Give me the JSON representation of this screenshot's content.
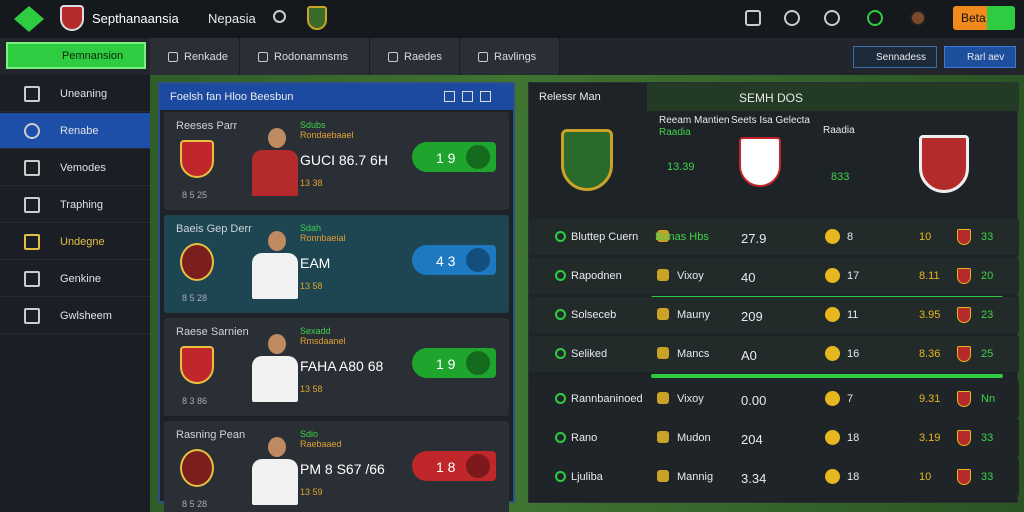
{
  "header": {
    "brand": "Septhanaansia",
    "nav": "Nepasia",
    "button": "Beta"
  },
  "toolbar": {
    "primary": "Pemnansion",
    "tabs": [
      "Renkade",
      "Rodonamnsms",
      "Raedes",
      "Ravlings"
    ],
    "actions": [
      "Sennadess",
      "Rarl aev"
    ]
  },
  "sidebar": {
    "items": [
      "Uneaning",
      "Renabe",
      "Vemodes",
      "Traphing",
      "Undegne",
      "Genkine",
      "Gwlsheem"
    ]
  },
  "matches": {
    "title": "Foelsh fan Hloo Beesbun",
    "cards": [
      {
        "title": "Reeses Parr",
        "tag": "Sdubs",
        "sub": "Rondaebaael",
        "score": "GUCI 86.7 6H",
        "odds": "1 9",
        "note": "13 38",
        "foot": "8 5 25"
      },
      {
        "title": "Baeis Gep Derr",
        "tag": "Sdah",
        "sub": "Ronnbaeial",
        "score": "EAM",
        "odds": "4 3",
        "note": "13 58",
        "foot": "8 5 28"
      },
      {
        "title": "Raese Sarnien",
        "tag": "Sexadd",
        "sub": "Rmsdaanel",
        "score": "FAHA A80 68",
        "odds": "1 9",
        "note": "13 58",
        "foot": "8 3 86"
      },
      {
        "title": "Rasning Pean",
        "tag": "Sdio",
        "sub": "Raebaaed",
        "score": "PM 8 S67 /66",
        "odds": "1 8",
        "note": "13 59",
        "foot": "8 5 28"
      }
    ]
  },
  "detail": {
    "title": "Relessr Man",
    "heading": "SEMH DOS",
    "teams": [
      {
        "label": "Reeam Mantien",
        "sub": "Raadia",
        "value": "13.39"
      },
      {
        "label": "Seets Isa Gelecta",
        "sub": "",
        "value": ""
      },
      {
        "label": "Raadia",
        "sub": "",
        "value": "833"
      }
    ],
    "rows": [
      [
        "Bluttep Cuern",
        "Bonas Hbs",
        "27.9",
        "8",
        "10",
        "33"
      ],
      [
        "Rapodnen",
        "Vixoy",
        "40",
        "17",
        "8.11",
        "20"
      ],
      [
        "Solseceb",
        "Mauny",
        "209",
        "11",
        "3.95",
        "23"
      ],
      [
        "Seliked",
        "Mancs",
        "A0",
        "16",
        "8.36",
        "25"
      ],
      [
        "Rannbaninoed",
        "Vixoy",
        "0.00",
        "7",
        "9.31",
        "Nn"
      ],
      [
        "Rano",
        "Mudon",
        "204",
        "18",
        "3.19",
        "33"
      ],
      [
        "Ljuliba",
        "Mannig",
        "3.34",
        "18",
        "10",
        "33"
      ]
    ]
  }
}
